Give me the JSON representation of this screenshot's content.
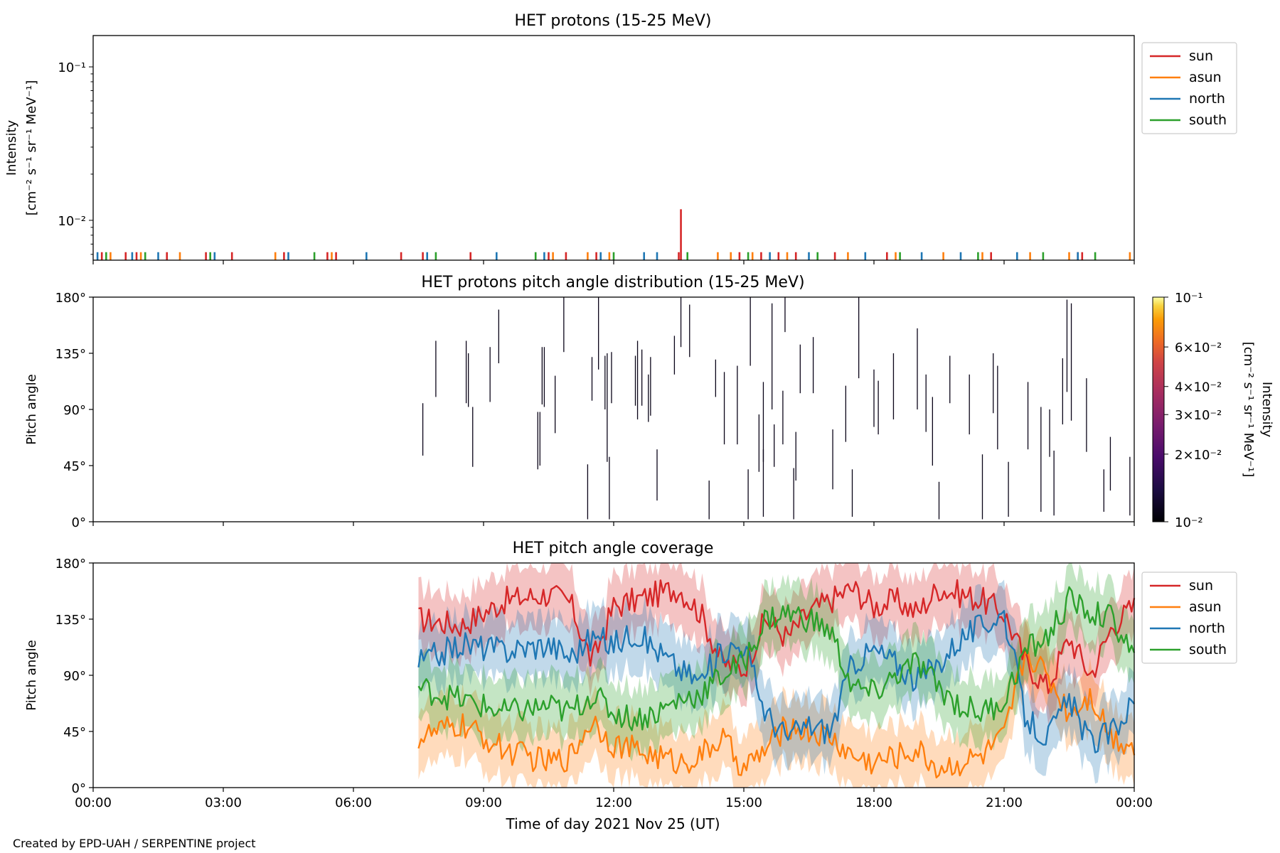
{
  "figure": {
    "credit": "Created by EPD-UAH / SERPENTINE project",
    "xlabel": "Time of day 2021 Nov 25 (UT)",
    "xticks": [
      "00:00",
      "03:00",
      "06:00",
      "09:00",
      "12:00",
      "15:00",
      "18:00",
      "21:00",
      "00:00"
    ],
    "colors": {
      "sun": "#d62728",
      "asun": "#ff7f0e",
      "north": "#1f77b4",
      "south": "#2ca02c"
    }
  },
  "chart_data": [
    {
      "type": "line",
      "title": "HET protons (15-25 MeV)",
      "ylabel_line1": "Intensity",
      "ylabel_line2": "[cm⁻² s⁻¹ sr⁻¹ MeV⁻¹]",
      "yscale": "log",
      "xlim_hours": [
        0,
        24
      ],
      "ylim": [
        0.0055,
        0.16
      ],
      "yticks": [
        {
          "value": 0.01,
          "label": "10⁻²"
        },
        {
          "value": 0.1,
          "label": "10⁻¹"
        }
      ],
      "legend": {
        "placement": "outside-right-top",
        "entries": [
          "sun",
          "asun",
          "north",
          "south"
        ]
      },
      "baseline_value": 0.0062,
      "spikes": {
        "sun": [
          0.2,
          0.75,
          1.0,
          1.7,
          2.6,
          3.2,
          4.4,
          5.4,
          5.6,
          7.1,
          7.6,
          8.7,
          10.5,
          10.9,
          11.6,
          13.5,
          14.9,
          15.4,
          15.8,
          16.2,
          17.1,
          18.3,
          20.7,
          22.7,
          22.8
        ],
        "asun": [
          0.4,
          1.1,
          2.0,
          4.2,
          5.5,
          10.6,
          11.4,
          11.9,
          14.4,
          14.7,
          15.2,
          16.0,
          17.4,
          18.5,
          19.6,
          20.5,
          21.6,
          22.5,
          23.9
        ],
        "north": [
          0.1,
          0.9,
          1.5,
          2.8,
          4.5,
          6.3,
          7.7,
          9.3,
          10.4,
          11.7,
          12.7,
          13.0,
          15.6,
          16.5,
          17.8,
          19.1,
          20.0,
          21.3,
          22.7
        ],
        "south": [
          0.3,
          1.2,
          2.7,
          5.1,
          7.9,
          10.2,
          12.0,
          13.7,
          15.1,
          16.7,
          18.6,
          20.4,
          21.9,
          23.1
        ]
      },
      "peak": {
        "series": "sun",
        "x": 13.55,
        "value": 0.0118
      }
    },
    {
      "type": "heatmap",
      "title": "HET protons pitch angle distribution (15-25 MeV)",
      "ylabel": "Pitch angle",
      "yticks": [
        "0°",
        "45°",
        "90°",
        "135°",
        "180°"
      ],
      "ylim": [
        0,
        180
      ],
      "xlim_hours": [
        0,
        24
      ],
      "colorbar": {
        "scale": "log",
        "range": [
          0.01,
          0.1
        ],
        "label_line1": "Intensity",
        "label_line2": "[cm⁻² s⁻¹ sr⁻¹ MeV⁻¹]",
        "ticks": [
          {
            "value": 0.1,
            "label": "10⁻¹"
          },
          {
            "value": 0.06,
            "label": "6×10⁻²"
          },
          {
            "value": 0.04,
            "label": "4×10⁻²"
          },
          {
            "value": 0.03,
            "label": "3×10⁻²"
          },
          {
            "value": 0.02,
            "label": "2×10⁻²"
          },
          {
            "value": 0.01,
            "label": "10⁻²"
          }
        ]
      },
      "segments": [
        [
          7.6,
          53,
          95
        ],
        [
          7.9,
          100,
          145
        ],
        [
          8.6,
          95,
          145
        ],
        [
          8.65,
          92,
          135
        ],
        [
          8.75,
          44,
          92
        ],
        [
          9.15,
          96,
          140
        ],
        [
          9.35,
          127,
          170
        ],
        [
          10.25,
          42,
          88
        ],
        [
          10.3,
          45,
          88
        ],
        [
          10.35,
          94,
          140
        ],
        [
          10.4,
          92,
          140
        ],
        [
          10.65,
          71,
          117
        ],
        [
          10.85,
          136,
          180
        ],
        [
          11.4,
          2,
          46
        ],
        [
          11.5,
          97,
          132
        ],
        [
          11.65,
          122,
          180
        ],
        [
          11.8,
          90,
          133
        ],
        [
          11.85,
          48,
          135
        ],
        [
          11.9,
          2,
          52
        ],
        [
          11.95,
          95,
          136
        ],
        [
          12.5,
          93,
          133
        ],
        [
          12.55,
          82,
          145
        ],
        [
          12.65,
          93,
          138
        ],
        [
          12.8,
          80,
          118
        ],
        [
          12.85,
          85,
          132
        ],
        [
          13.0,
          17,
          58
        ],
        [
          13.4,
          118,
          149
        ],
        [
          13.55,
          140,
          180
        ],
        [
          13.75,
          132,
          174
        ],
        [
          14.2,
          2,
          33
        ],
        [
          14.35,
          100,
          130
        ],
        [
          14.55,
          62,
          120
        ],
        [
          14.85,
          62,
          125
        ],
        [
          15.1,
          2,
          42
        ],
        [
          15.15,
          125,
          180
        ],
        [
          15.35,
          40,
          86
        ],
        [
          15.45,
          4,
          58
        ],
        [
          15.45,
          48,
          112
        ],
        [
          15.65,
          90,
          175
        ],
        [
          15.7,
          44,
          78
        ],
        [
          15.9,
          62,
          105
        ],
        [
          15.95,
          152,
          180
        ],
        [
          16.15,
          2,
          43
        ],
        [
          16.2,
          33,
          72
        ],
        [
          16.3,
          103,
          142
        ],
        [
          16.6,
          103,
          148
        ],
        [
          17.05,
          26,
          74
        ],
        [
          17.35,
          64,
          109
        ],
        [
          17.5,
          4,
          42
        ],
        [
          17.65,
          115,
          180
        ],
        [
          18.0,
          76,
          122
        ],
        [
          18.1,
          70,
          113
        ],
        [
          18.45,
          82,
          135
        ],
        [
          19.0,
          90,
          155
        ],
        [
          19.2,
          72,
          118
        ],
        [
          19.35,
          45,
          100
        ],
        [
          19.5,
          2,
          32
        ],
        [
          19.75,
          95,
          133
        ],
        [
          20.2,
          70,
          118
        ],
        [
          20.5,
          2,
          54
        ],
        [
          20.75,
          87,
          135
        ],
        [
          20.85,
          58,
          125
        ],
        [
          21.1,
          4,
          48
        ],
        [
          21.55,
          58,
          112
        ],
        [
          21.85,
          8,
          92
        ],
        [
          22.05,
          52,
          90
        ],
        [
          22.15,
          5,
          57
        ],
        [
          22.35,
          78,
          131
        ],
        [
          22.45,
          104,
          178
        ],
        [
          22.55,
          81,
          175
        ],
        [
          22.9,
          56,
          115
        ],
        [
          23.3,
          8,
          42
        ],
        [
          23.45,
          25,
          68
        ],
        [
          23.9,
          5,
          52
        ]
      ]
    },
    {
      "type": "line",
      "title": "HET pitch angle coverage",
      "ylabel": "Pitch angle",
      "yticks": [
        "0°",
        "45°",
        "90°",
        "135°",
        "180°"
      ],
      "ylim": [
        0,
        180
      ],
      "xlim_hours": [
        0,
        24
      ],
      "legend": {
        "placement": "outside-right-top",
        "entries": [
          "sun",
          "asun",
          "north",
          "south"
        ]
      },
      "data_start_hour": 7.5,
      "band_halfwidth": 25,
      "series": [
        {
          "name": "sun",
          "x": [
            7.5,
            8.5,
            9.5,
            10.5,
            11.0,
            11.5,
            12.0,
            12.5,
            13.0,
            13.5,
            14.0,
            14.5,
            15.0,
            15.5,
            16.0,
            16.5,
            17.0,
            17.5,
            18.0,
            18.5,
            19.0,
            19.5,
            20.0,
            20.5,
            21.0,
            21.5,
            22.0,
            22.5,
            23.0,
            23.5,
            24.0
          ],
          "y": [
            135,
            130,
            150,
            155,
            148,
            100,
            145,
            150,
            155,
            160,
            140,
            100,
            95,
            135,
            120,
            140,
            150,
            160,
            145,
            150,
            140,
            160,
            155,
            150,
            140,
            100,
            80,
            120,
            90,
            130,
            145
          ]
        },
        {
          "name": "asun",
          "x": [
            7.5,
            8.5,
            9.5,
            10.5,
            11.0,
            11.5,
            12.0,
            12.5,
            13.0,
            13.5,
            14.0,
            14.5,
            15.0,
            15.5,
            16.0,
            16.5,
            17.0,
            17.5,
            18.0,
            18.5,
            19.0,
            19.5,
            20.0,
            20.5,
            21.0,
            21.5,
            22.0,
            22.5,
            23.0,
            23.5,
            24.0
          ],
          "y": [
            40,
            50,
            30,
            20,
            25,
            55,
            35,
            30,
            25,
            20,
            25,
            40,
            15,
            30,
            50,
            45,
            40,
            25,
            20,
            25,
            30,
            15,
            20,
            25,
            40,
            110,
            90,
            60,
            75,
            40,
            35
          ]
        },
        {
          "name": "north",
          "x": [
            7.5,
            8.5,
            9.5,
            10.5,
            11.0,
            11.5,
            12.0,
            12.5,
            13.0,
            13.5,
            14.0,
            14.5,
            15.0,
            15.5,
            16.0,
            16.5,
            17.0,
            17.5,
            18.0,
            18.5,
            19.0,
            19.5,
            20.0,
            20.5,
            21.0,
            21.5,
            22.0,
            22.5,
            23.0,
            23.5,
            24.0
          ],
          "y": [
            100,
            115,
            110,
            115,
            105,
            120,
            115,
            125,
            110,
            95,
            85,
            110,
            115,
            60,
            40,
            50,
            45,
            100,
            110,
            100,
            85,
            100,
            120,
            130,
            140,
            55,
            40,
            70,
            35,
            45,
            70
          ]
        },
        {
          "name": "south",
          "x": [
            7.5,
            8.5,
            9.5,
            10.5,
            11.0,
            11.5,
            12.0,
            12.5,
            13.0,
            13.5,
            14.0,
            14.5,
            15.0,
            15.5,
            16.0,
            16.5,
            17.0,
            17.5,
            18.0,
            18.5,
            19.0,
            19.5,
            20.0,
            20.5,
            21.0,
            21.5,
            22.0,
            22.5,
            23.0,
            23.5,
            24.0
          ],
          "y": [
            80,
            70,
            60,
            65,
            60,
            75,
            60,
            55,
            60,
            70,
            75,
            90,
            100,
            135,
            140,
            135,
            125,
            80,
            75,
            90,
            100,
            80,
            65,
            60,
            70,
            110,
            120,
            150,
            140,
            135,
            105
          ]
        }
      ]
    }
  ]
}
